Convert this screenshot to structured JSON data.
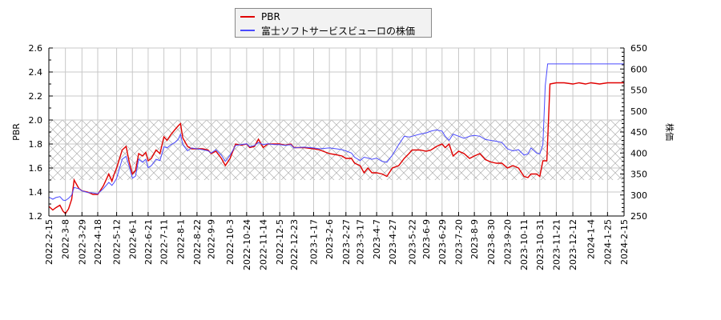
{
  "legend": {
    "items": [
      {
        "label": "PBR",
        "color": "#e00000"
      },
      {
        "label": "富士ソフトサービスビューロの株価",
        "color": "#4b4bff"
      }
    ]
  },
  "chart_data": {
    "type": "line",
    "title": "",
    "xlabel": "",
    "ylabel": "PBR",
    "y2label": "株価",
    "ylim": [
      1.2,
      2.6
    ],
    "y2lim": [
      250,
      650
    ],
    "yticks": [
      "1.2",
      "1.4",
      "1.6",
      "1.8",
      "2.0",
      "2.2",
      "2.4",
      "2.6"
    ],
    "y2ticks": [
      "250",
      "300",
      "350",
      "400",
      "450",
      "500",
      "550",
      "600",
      "650"
    ],
    "x_ticks": [
      "2022-2-15",
      "2022-3-8",
      "2022-3-29",
      "2022-4-18",
      "2022-5-12",
      "2022-6-1",
      "2022-6-21",
      "2022-7-11",
      "2022-8-1",
      "2022-8-22",
      "2022-9-9",
      "2022-10-3",
      "2022-10-24",
      "2022-11-14",
      "2022-12-5",
      "2022-12-23",
      "2023-1-17",
      "2023-2-6",
      "2023-2-27",
      "2023-3-17",
      "2023-4-7",
      "2023-4-27",
      "2023-5-22",
      "2023-6-9",
      "2023-6-29",
      "2023-7-20",
      "2023-8-9",
      "2023-8-30",
      "2023-9-20",
      "2023-10-11",
      "2023-10-31",
      "2023-11-21",
      "2023-12-12",
      "2024-1-4",
      "2024-1-25",
      "2024-2-15"
    ],
    "grid": true,
    "shaded_band": {
      "axis": "left",
      "from": 1.5,
      "to": 2.0,
      "pattern": "crosshatch"
    },
    "legend_position": "top-center",
    "series": [
      {
        "name": "PBR",
        "axis": "left",
        "color": "#e00000",
        "points": [
          [
            "2022-2-15",
            1.28
          ],
          [
            "2022-2-20",
            1.25
          ],
          [
            "2022-2-24",
            1.27
          ],
          [
            "2022-3-1",
            1.29
          ],
          [
            "2022-3-5",
            1.24
          ],
          [
            "2022-3-8",
            1.22
          ],
          [
            "2022-3-12",
            1.26
          ],
          [
            "2022-3-16",
            1.34
          ],
          [
            "2022-3-19",
            1.5
          ],
          [
            "2022-3-25",
            1.43
          ],
          [
            "2022-3-29",
            1.41
          ],
          [
            "2022-4-5",
            1.4
          ],
          [
            "2022-4-12",
            1.38
          ],
          [
            "2022-4-18",
            1.38
          ],
          [
            "2022-4-25",
            1.45
          ],
          [
            "2022-5-2",
            1.55
          ],
          [
            "2022-5-6",
            1.49
          ],
          [
            "2022-5-9",
            1.55
          ],
          [
            "2022-5-12",
            1.6
          ],
          [
            "2022-5-19",
            1.75
          ],
          [
            "2022-5-24",
            1.78
          ],
          [
            "2022-5-28",
            1.65
          ],
          [
            "2022-6-1",
            1.55
          ],
          [
            "2022-6-5",
            1.58
          ],
          [
            "2022-6-9",
            1.72
          ],
          [
            "2022-6-14",
            1.7
          ],
          [
            "2022-6-18",
            1.73
          ],
          [
            "2022-6-21",
            1.66
          ],
          [
            "2022-6-25",
            1.68
          ],
          [
            "2022-7-1",
            1.75
          ],
          [
            "2022-7-6",
            1.72
          ],
          [
            "2022-7-11",
            1.86
          ],
          [
            "2022-7-15",
            1.83
          ],
          [
            "2022-7-20",
            1.88
          ],
          [
            "2022-7-25",
            1.92
          ],
          [
            "2022-7-29",
            1.95
          ],
          [
            "2022-8-1",
            1.97
          ],
          [
            "2022-8-4",
            1.85
          ],
          [
            "2022-8-10",
            1.78
          ],
          [
            "2022-8-15",
            1.76
          ],
          [
            "2022-8-22",
            1.76
          ],
          [
            "2022-8-29",
            1.76
          ],
          [
            "2022-9-5",
            1.75
          ],
          [
            "2022-9-9",
            1.72
          ],
          [
            "2022-9-15",
            1.74
          ],
          [
            "2022-9-22",
            1.68
          ],
          [
            "2022-9-27",
            1.62
          ],
          [
            "2022-10-3",
            1.68
          ],
          [
            "2022-10-10",
            1.8
          ],
          [
            "2022-10-17",
            1.79
          ],
          [
            "2022-10-24",
            1.8
          ],
          [
            "2022-10-28",
            1.77
          ],
          [
            "2022-11-3",
            1.78
          ],
          [
            "2022-11-8",
            1.84
          ],
          [
            "2022-11-14",
            1.77
          ],
          [
            "2022-11-20",
            1.8
          ],
          [
            "2022-11-28",
            1.8
          ],
          [
            "2022-12-5",
            1.8
          ],
          [
            "2022-12-12",
            1.79
          ],
          [
            "2022-12-19",
            1.8
          ],
          [
            "2022-12-23",
            1.77
          ],
          [
            "2023-1-5",
            1.77
          ],
          [
            "2023-1-17",
            1.76
          ],
          [
            "2023-1-25",
            1.75
          ],
          [
            "2023-2-6",
            1.72
          ],
          [
            "2023-2-15",
            1.71
          ],
          [
            "2023-2-22",
            1.7
          ],
          [
            "2023-2-27",
            1.68
          ],
          [
            "2023-3-6",
            1.68
          ],
          [
            "2023-3-10",
            1.64
          ],
          [
            "2023-3-17",
            1.62
          ],
          [
            "2023-3-22",
            1.56
          ],
          [
            "2023-3-27",
            1.6
          ],
          [
            "2023-4-1",
            1.56
          ],
          [
            "2023-4-7",
            1.56
          ],
          [
            "2023-4-14",
            1.55
          ],
          [
            "2023-4-20",
            1.53
          ],
          [
            "2023-4-27",
            1.6
          ],
          [
            "2023-5-5",
            1.62
          ],
          [
            "2023-5-12",
            1.68
          ],
          [
            "2023-5-18",
            1.72
          ],
          [
            "2023-5-22",
            1.75
          ],
          [
            "2023-6-1",
            1.75
          ],
          [
            "2023-6-9",
            1.74
          ],
          [
            "2023-6-15",
            1.75
          ],
          [
            "2023-6-22",
            1.78
          ],
          [
            "2023-6-29",
            1.8
          ],
          [
            "2023-7-3",
            1.77
          ],
          [
            "2023-7-8",
            1.8
          ],
          [
            "2023-7-13",
            1.7
          ],
          [
            "2023-7-20",
            1.74
          ],
          [
            "2023-7-27",
            1.72
          ],
          [
            "2023-8-3",
            1.68
          ],
          [
            "2023-8-9",
            1.7
          ],
          [
            "2023-8-16",
            1.72
          ],
          [
            "2023-8-23",
            1.67
          ],
          [
            "2023-8-30",
            1.65
          ],
          [
            "2023-9-6",
            1.64
          ],
          [
            "2023-9-13",
            1.64
          ],
          [
            "2023-9-20",
            1.6
          ],
          [
            "2023-9-27",
            1.62
          ],
          [
            "2023-10-4",
            1.6
          ],
          [
            "2023-10-11",
            1.53
          ],
          [
            "2023-10-16",
            1.52
          ],
          [
            "2023-10-20",
            1.55
          ],
          [
            "2023-10-27",
            1.55
          ],
          [
            "2023-10-31",
            1.53
          ],
          [
            "2023-11-4",
            1.66
          ],
          [
            "2023-11-9",
            1.66
          ],
          [
            "2023-11-13",
            2.3
          ],
          [
            "2023-11-21",
            2.31
          ],
          [
            "2023-12-1",
            2.31
          ],
          [
            "2023-12-12",
            2.3
          ],
          [
            "2023-12-20",
            2.31
          ],
          [
            "2023-12-28",
            2.3
          ],
          [
            "2024-1-4",
            2.31
          ],
          [
            "2024-1-15",
            2.3
          ],
          [
            "2024-1-25",
            2.31
          ],
          [
            "2024-2-15",
            2.31
          ]
        ]
      },
      {
        "name": "富士ソフトサービスビューロの株価",
        "axis": "right",
        "color": "#4b4bff",
        "points": [
          [
            "2022-2-15",
            295
          ],
          [
            "2022-2-20",
            290
          ],
          [
            "2022-2-24",
            294
          ],
          [
            "2022-3-1",
            296
          ],
          [
            "2022-3-5",
            288
          ],
          [
            "2022-3-8",
            287
          ],
          [
            "2022-3-12",
            292
          ],
          [
            "2022-3-16",
            300
          ],
          [
            "2022-3-19",
            318
          ],
          [
            "2022-3-25",
            315
          ],
          [
            "2022-3-29",
            310
          ],
          [
            "2022-4-5",
            306
          ],
          [
            "2022-4-12",
            305
          ],
          [
            "2022-4-18",
            303
          ],
          [
            "2022-4-25",
            315
          ],
          [
            "2022-5-2",
            330
          ],
          [
            "2022-5-6",
            323
          ],
          [
            "2022-5-9",
            330
          ],
          [
            "2022-5-12",
            340
          ],
          [
            "2022-5-19",
            385
          ],
          [
            "2022-5-24",
            392
          ],
          [
            "2022-5-28",
            368
          ],
          [
            "2022-6-1",
            340
          ],
          [
            "2022-6-5",
            345
          ],
          [
            "2022-6-9",
            385
          ],
          [
            "2022-6-14",
            378
          ],
          [
            "2022-6-18",
            385
          ],
          [
            "2022-6-21",
            365
          ],
          [
            "2022-6-25",
            370
          ],
          [
            "2022-7-1",
            385
          ],
          [
            "2022-7-6",
            382
          ],
          [
            "2022-7-11",
            415
          ],
          [
            "2022-7-15",
            412
          ],
          [
            "2022-7-20",
            420
          ],
          [
            "2022-7-25",
            425
          ],
          [
            "2022-7-29",
            432
          ],
          [
            "2022-8-1",
            445
          ],
          [
            "2022-8-4",
            420
          ],
          [
            "2022-8-10",
            405
          ],
          [
            "2022-8-15",
            412
          ],
          [
            "2022-8-22",
            410
          ],
          [
            "2022-8-29",
            408
          ],
          [
            "2022-9-5",
            405
          ],
          [
            "2022-9-9",
            400
          ],
          [
            "2022-9-15",
            408
          ],
          [
            "2022-9-22",
            395
          ],
          [
            "2022-9-27",
            380
          ],
          [
            "2022-10-3",
            395
          ],
          [
            "2022-10-10",
            418
          ],
          [
            "2022-10-17",
            420
          ],
          [
            "2022-10-24",
            422
          ],
          [
            "2022-10-28",
            415
          ],
          [
            "2022-11-3",
            418
          ],
          [
            "2022-11-8",
            425
          ],
          [
            "2022-11-14",
            420
          ],
          [
            "2022-11-20",
            422
          ],
          [
            "2022-11-28",
            420
          ],
          [
            "2022-12-5",
            420
          ],
          [
            "2022-12-12",
            418
          ],
          [
            "2022-12-19",
            420
          ],
          [
            "2022-12-23",
            412
          ],
          [
            "2023-1-5",
            414
          ],
          [
            "2023-1-17",
            412
          ],
          [
            "2023-1-25",
            410
          ],
          [
            "2023-2-6",
            412
          ],
          [
            "2023-2-15",
            410
          ],
          [
            "2023-2-22",
            408
          ],
          [
            "2023-2-27",
            405
          ],
          [
            "2023-3-6",
            400
          ],
          [
            "2023-3-10",
            390
          ],
          [
            "2023-3-17",
            382
          ],
          [
            "2023-3-22",
            390
          ],
          [
            "2023-3-27",
            388
          ],
          [
            "2023-4-1",
            385
          ],
          [
            "2023-4-7",
            388
          ],
          [
            "2023-4-14",
            380
          ],
          [
            "2023-4-20",
            378
          ],
          [
            "2023-4-27",
            395
          ],
          [
            "2023-5-5",
            420
          ],
          [
            "2023-5-12",
            440
          ],
          [
            "2023-5-18",
            438
          ],
          [
            "2023-5-22",
            440
          ],
          [
            "2023-6-1",
            445
          ],
          [
            "2023-6-9",
            448
          ],
          [
            "2023-6-15",
            452
          ],
          [
            "2023-6-22",
            455
          ],
          [
            "2023-6-29",
            452
          ],
          [
            "2023-7-3",
            440
          ],
          [
            "2023-7-8",
            430
          ],
          [
            "2023-7-13",
            445
          ],
          [
            "2023-7-20",
            440
          ],
          [
            "2023-7-27",
            435
          ],
          [
            "2023-8-3",
            440
          ],
          [
            "2023-8-9",
            442
          ],
          [
            "2023-8-16",
            440
          ],
          [
            "2023-8-23",
            432
          ],
          [
            "2023-8-30",
            430
          ],
          [
            "2023-9-6",
            428
          ],
          [
            "2023-9-13",
            425
          ],
          [
            "2023-9-20",
            410
          ],
          [
            "2023-9-27",
            405
          ],
          [
            "2023-10-4",
            408
          ],
          [
            "2023-10-11",
            395
          ],
          [
            "2023-10-16",
            398
          ],
          [
            "2023-10-20",
            412
          ],
          [
            "2023-10-27",
            400
          ],
          [
            "2023-10-31",
            398
          ],
          [
            "2023-11-4",
            420
          ],
          [
            "2023-11-7",
            560
          ],
          [
            "2023-11-10",
            612
          ],
          [
            "2023-11-21",
            612
          ],
          [
            "2023-12-1",
            612
          ],
          [
            "2023-12-12",
            612
          ],
          [
            "2024-1-4",
            612
          ],
          [
            "2024-1-25",
            612
          ],
          [
            "2024-2-15",
            612
          ]
        ]
      }
    ]
  }
}
